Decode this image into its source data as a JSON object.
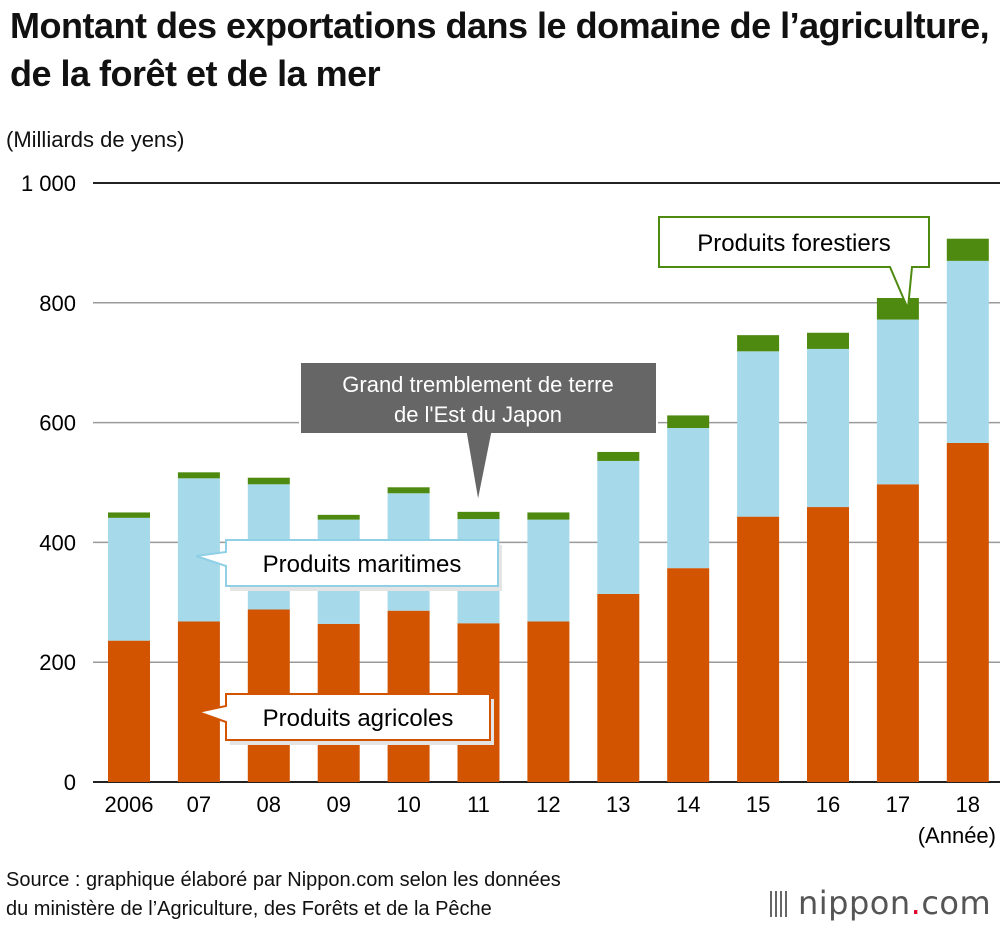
{
  "chart_data": {
    "type": "bar",
    "stacked": true,
    "title": "Montant des exportations dans le domaine de l’agriculture, de la forêt et de la mer",
    "ylabel": "(Milliards de yens)",
    "xlabel": "(Année)",
    "ylim": [
      0,
      1000
    ],
    "yticks": [
      0,
      200,
      400,
      600,
      800,
      1000
    ],
    "ytick_labels": [
      "0",
      "200",
      "400",
      "600",
      "800",
      "1 000"
    ],
    "categories": [
      "2006",
      "07",
      "08",
      "09",
      "10",
      "11",
      "12",
      "13",
      "14",
      "15",
      "16",
      "17",
      "18"
    ],
    "series": [
      {
        "name": "Produits agricoles",
        "color": "#d25400",
        "values": [
          236,
          268,
          288,
          264,
          286,
          265,
          268,
          314,
          357,
          443,
          459,
          497,
          566
        ]
      },
      {
        "name": "Produits maritimes",
        "color": "#a6d9ea",
        "values": [
          205,
          239,
          209,
          174,
          196,
          174,
          170,
          222,
          234,
          276,
          264,
          275,
          304
        ]
      },
      {
        "name": "Produits forestiers",
        "color": "#4f8a10",
        "values": [
          9,
          10,
          11,
          8,
          10,
          12,
          12,
          15,
          21,
          27,
          27,
          36,
          37
        ]
      }
    ],
    "annotations": [
      {
        "id": "earthquake",
        "text_lines": [
          "Grand tremblement de terre",
          "de l'Est du Japon"
        ],
        "category": "11"
      },
      {
        "id": "forestiers",
        "text": "Produits forestiers",
        "category": "17"
      },
      {
        "id": "maritimes",
        "text": "Produits maritimes"
      },
      {
        "id": "agricoles",
        "text": "Produits agricoles"
      }
    ]
  },
  "source_lines": [
    "Source : graphique élaboré par Nippon.com selon les données",
    "du ministère de l’Agriculture, des Forêts et de la Pêche"
  ],
  "logo": {
    "name": "nippon",
    "dot": ".",
    "tld": "com"
  }
}
